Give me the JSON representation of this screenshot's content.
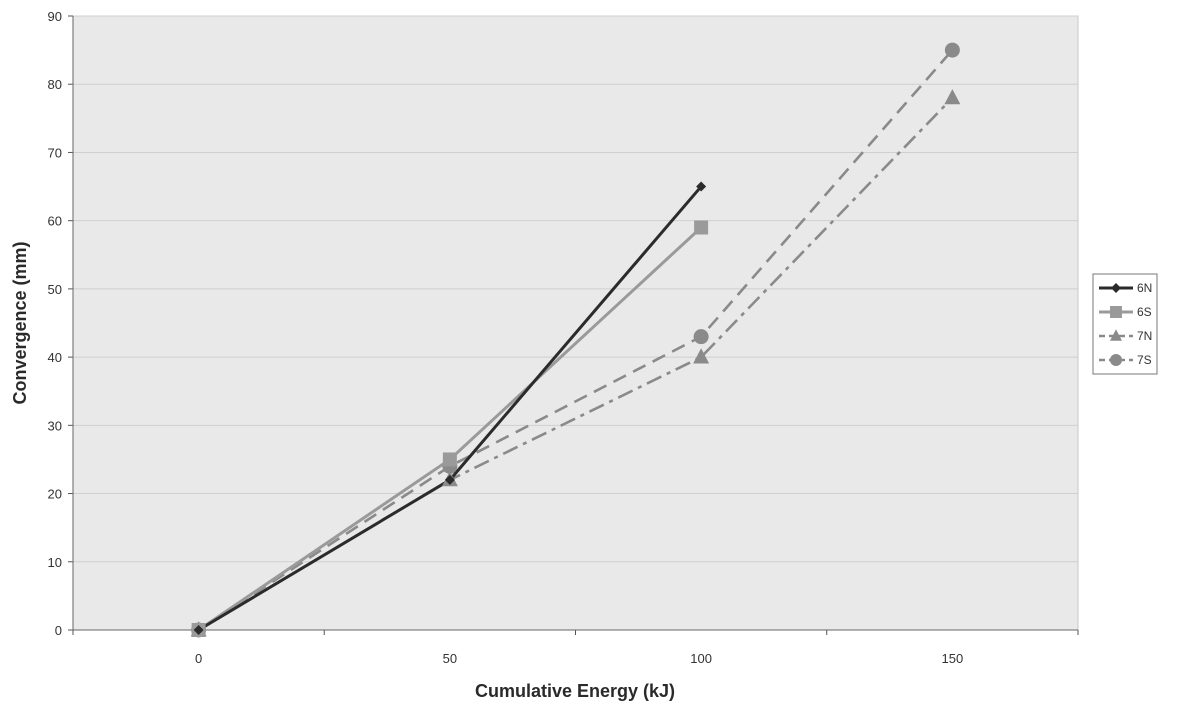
{
  "chart_data": {
    "type": "line",
    "title": "",
    "xlabel": "Cumulative Energy (kJ)",
    "ylabel": "Convergence (mm)",
    "xlim": [
      -25,
      175
    ],
    "ylim": [
      0,
      90
    ],
    "x_ticks": [
      0,
      50,
      100,
      150
    ],
    "y_ticks": [
      0,
      10,
      20,
      30,
      40,
      50,
      60,
      70,
      80,
      90
    ],
    "grid": true,
    "legend_position": "right",
    "series": [
      {
        "name": "6N",
        "color": "#2b2b2b",
        "marker": "diamond",
        "dash": "solid",
        "x": [
          0,
          50,
          100
        ],
        "y": [
          0,
          22,
          65
        ]
      },
      {
        "name": "6S",
        "color": "#9a9a9a",
        "marker": "square",
        "dash": "solid",
        "x": [
          0,
          50,
          100
        ],
        "y": [
          0,
          25,
          59
        ]
      },
      {
        "name": "7N",
        "color": "#8a8a8a",
        "marker": "triangle",
        "dash": "dashdot",
        "x": [
          0,
          50,
          100,
          150
        ],
        "y": [
          0,
          22,
          40,
          78
        ]
      },
      {
        "name": "7S",
        "color": "#8a8a8a",
        "marker": "circle",
        "dash": "dashed",
        "x": [
          0,
          50,
          100,
          150
        ],
        "y": [
          0,
          24,
          43,
          85
        ]
      }
    ]
  }
}
